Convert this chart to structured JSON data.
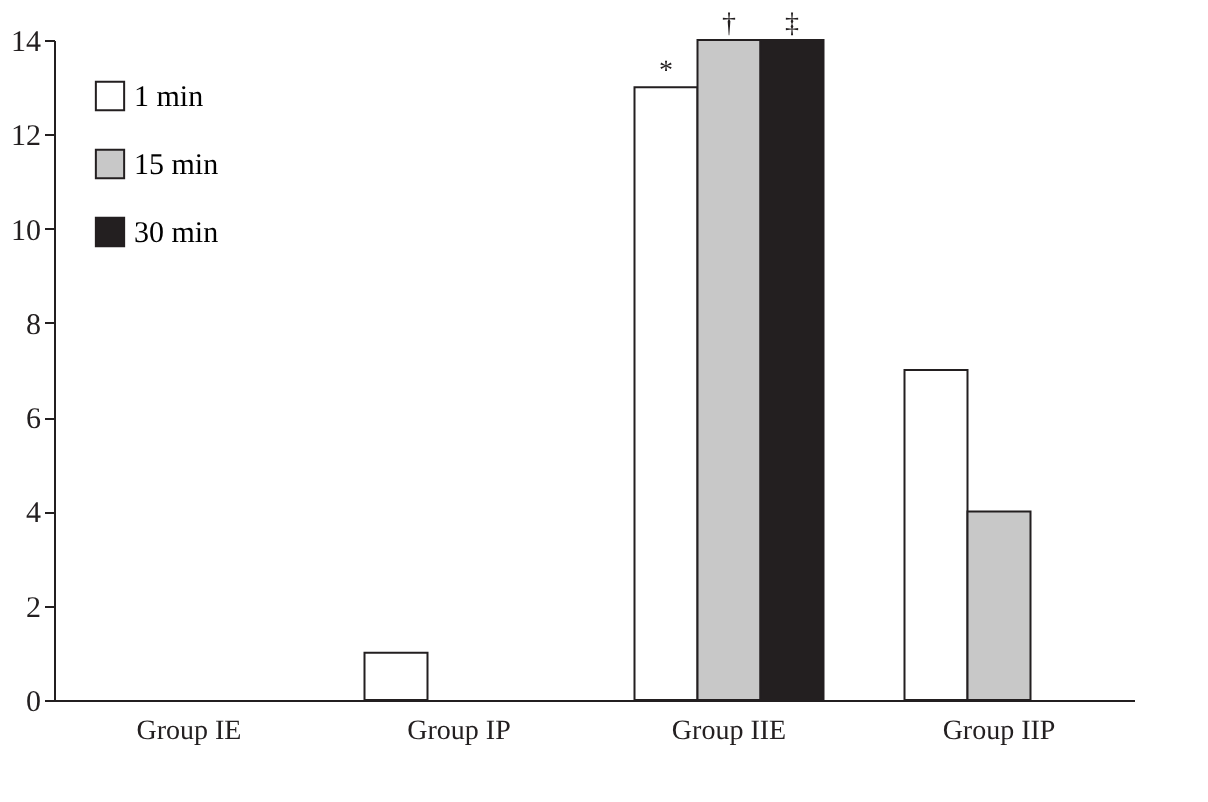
{
  "chart_data": {
    "type": "bar",
    "categories": [
      "Group IE",
      "Group IP",
      "Group IIE",
      "Group IIP"
    ],
    "series": [
      {
        "name": "1 min",
        "color": "#ffffff",
        "values": [
          0,
          1,
          13,
          7
        ]
      },
      {
        "name": "15 min",
        "color": "#c8c8c8",
        "values": [
          0,
          0,
          14,
          4
        ]
      },
      {
        "name": "30 min",
        "color": "#231f20",
        "values": [
          0,
          0,
          14,
          0
        ]
      }
    ],
    "ylim": [
      0,
      14
    ],
    "yticks": [
      0,
      2,
      4,
      6,
      8,
      10,
      12,
      14
    ],
    "annotations": [
      "*",
      "†",
      "‡"
    ],
    "grid": false,
    "legend": "top left"
  }
}
